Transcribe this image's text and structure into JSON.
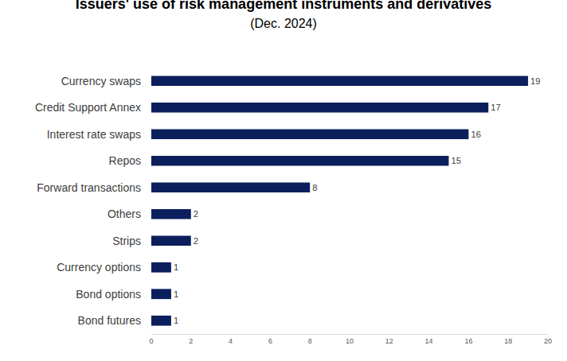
{
  "chart_data": {
    "type": "bar",
    "orientation": "horizontal",
    "title": "Issuers' use of risk management instruments and derivatives",
    "subtitle": "(Dec. 2024)",
    "categories": [
      "Currency swaps",
      "Credit Support Annex",
      "Interest rate swaps",
      "Repos",
      "Forward transactions",
      "Others",
      "Strips",
      "Currency options",
      "Bond options",
      "Bond futures"
    ],
    "values": [
      19,
      17,
      16,
      15,
      8,
      2,
      2,
      1,
      1,
      1
    ],
    "color": "#0b1f5c",
    "xlim": [
      0,
      20
    ],
    "xticks": [
      0,
      2,
      4,
      6,
      8,
      10,
      12,
      14,
      16,
      18,
      20
    ],
    "grid": false,
    "data_labels": true
  }
}
